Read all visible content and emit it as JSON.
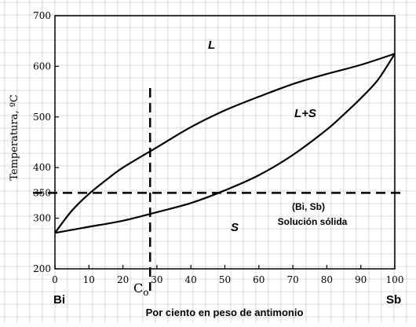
{
  "chart_data": {
    "type": "line",
    "x_axis": {
      "label": "Por ciento en peso de antimonio",
      "range": [
        0,
        100
      ],
      "ticks": [
        "0",
        "10",
        "20",
        "30",
        "40",
        "50",
        "60",
        "70",
        "80",
        "90",
        "100"
      ],
      "end_labels": {
        "left": "Bi",
        "right": "Sb"
      }
    },
    "y_axis": {
      "label": "Temperatura, ºC",
      "range": [
        200,
        700
      ],
      "ticks": [
        "200",
        "300",
        "400",
        "500",
        "600",
        "700"
      ],
      "highlight_tick": "350"
    },
    "grid": true,
    "series": [
      {
        "id": "liquidus",
        "x": [
          0,
          5,
          10,
          15,
          20,
          30,
          40,
          50,
          60,
          70,
          80,
          90,
          100
        ],
        "y": [
          271,
          315,
          348,
          375,
          400,
          440,
          480,
          513,
          540,
          565,
          585,
          603,
          625
        ]
      },
      {
        "id": "solidus",
        "x": [
          0,
          10,
          20,
          30,
          40,
          50,
          60,
          70,
          80,
          85,
          90,
          95,
          100
        ],
        "y": [
          271,
          283,
          295,
          312,
          330,
          355,
          385,
          425,
          475,
          505,
          537,
          573,
          625
        ]
      }
    ],
    "reference_lines": {
      "isotherm": {
        "temperature": 350
      },
      "composition": {
        "x": 28,
        "label": "Co"
      }
    },
    "region_labels": {
      "liquid": "L",
      "two_phase": "L+S",
      "solid": "S",
      "solid_solution_line1": "(Bi, Sb)",
      "solid_solution_line2": "Solución sólida"
    }
  }
}
